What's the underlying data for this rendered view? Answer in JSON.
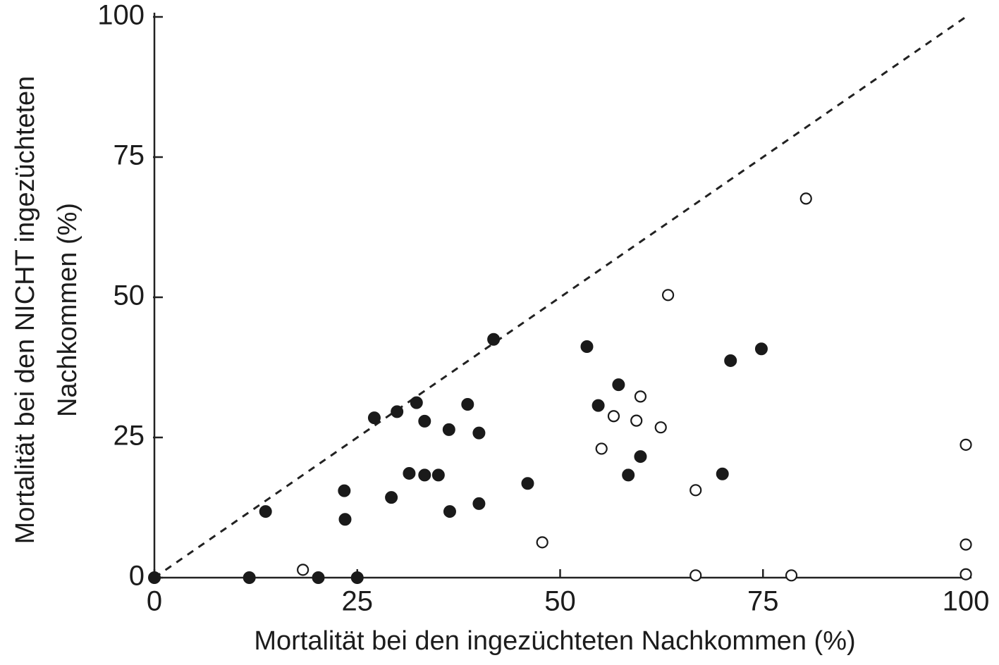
{
  "chart_data": {
    "type": "scatter",
    "xlabel": "Mortalität bei den ingezüchteten Nachkommen (%)",
    "ylabel": [
      "Mortalität bei den NICHT ingezüchteten",
      "Nachkommen (%)"
    ],
    "xlim": [
      0,
      100
    ],
    "ylim": [
      0,
      100
    ],
    "xticks": [
      0,
      25,
      50,
      75,
      100
    ],
    "yticks": [
      0,
      25,
      50,
      75,
      100
    ],
    "diagonal": true,
    "series": [
      {
        "color": "#1a1a1a",
        "filled": true,
        "x": [
          0,
          11.7,
          20.2,
          25,
          13.7,
          23.4,
          23.5,
          27.1,
          29.2,
          29.9,
          31.4,
          32.3,
          33.3,
          33.3,
          35,
          36.3,
          36.4,
          38.6,
          40,
          40,
          41.8,
          46,
          53.3,
          54.7,
          57.2,
          58.4,
          59.9,
          70,
          71,
          74.8
        ],
        "values": [
          0,
          0,
          0,
          0,
          11.8,
          15.5,
          10.4,
          28.5,
          14.3,
          29.6,
          18.6,
          31.2,
          27.9,
          18.3,
          18.3,
          26.4,
          11.8,
          30.9,
          25.8,
          13.2,
          42.5,
          16.8,
          41.2,
          30.7,
          34.4,
          18.3,
          21.6,
          18.5,
          38.7,
          40.8
        ]
      },
      {
        "color": "#1a1a1a",
        "filled": false,
        "x": [
          18.3,
          47.8,
          55.1,
          56.6,
          59.4,
          59.9,
          62.4,
          63.3,
          66.7,
          66.7,
          78.5,
          80.3,
          100,
          100,
          100
        ],
        "values": [
          1.4,
          6.3,
          23,
          28.8,
          28,
          32.3,
          26.8,
          50.4,
          15.6,
          0.4,
          0.4,
          67.6,
          23.7,
          5.9,
          0.6
        ]
      }
    ]
  }
}
